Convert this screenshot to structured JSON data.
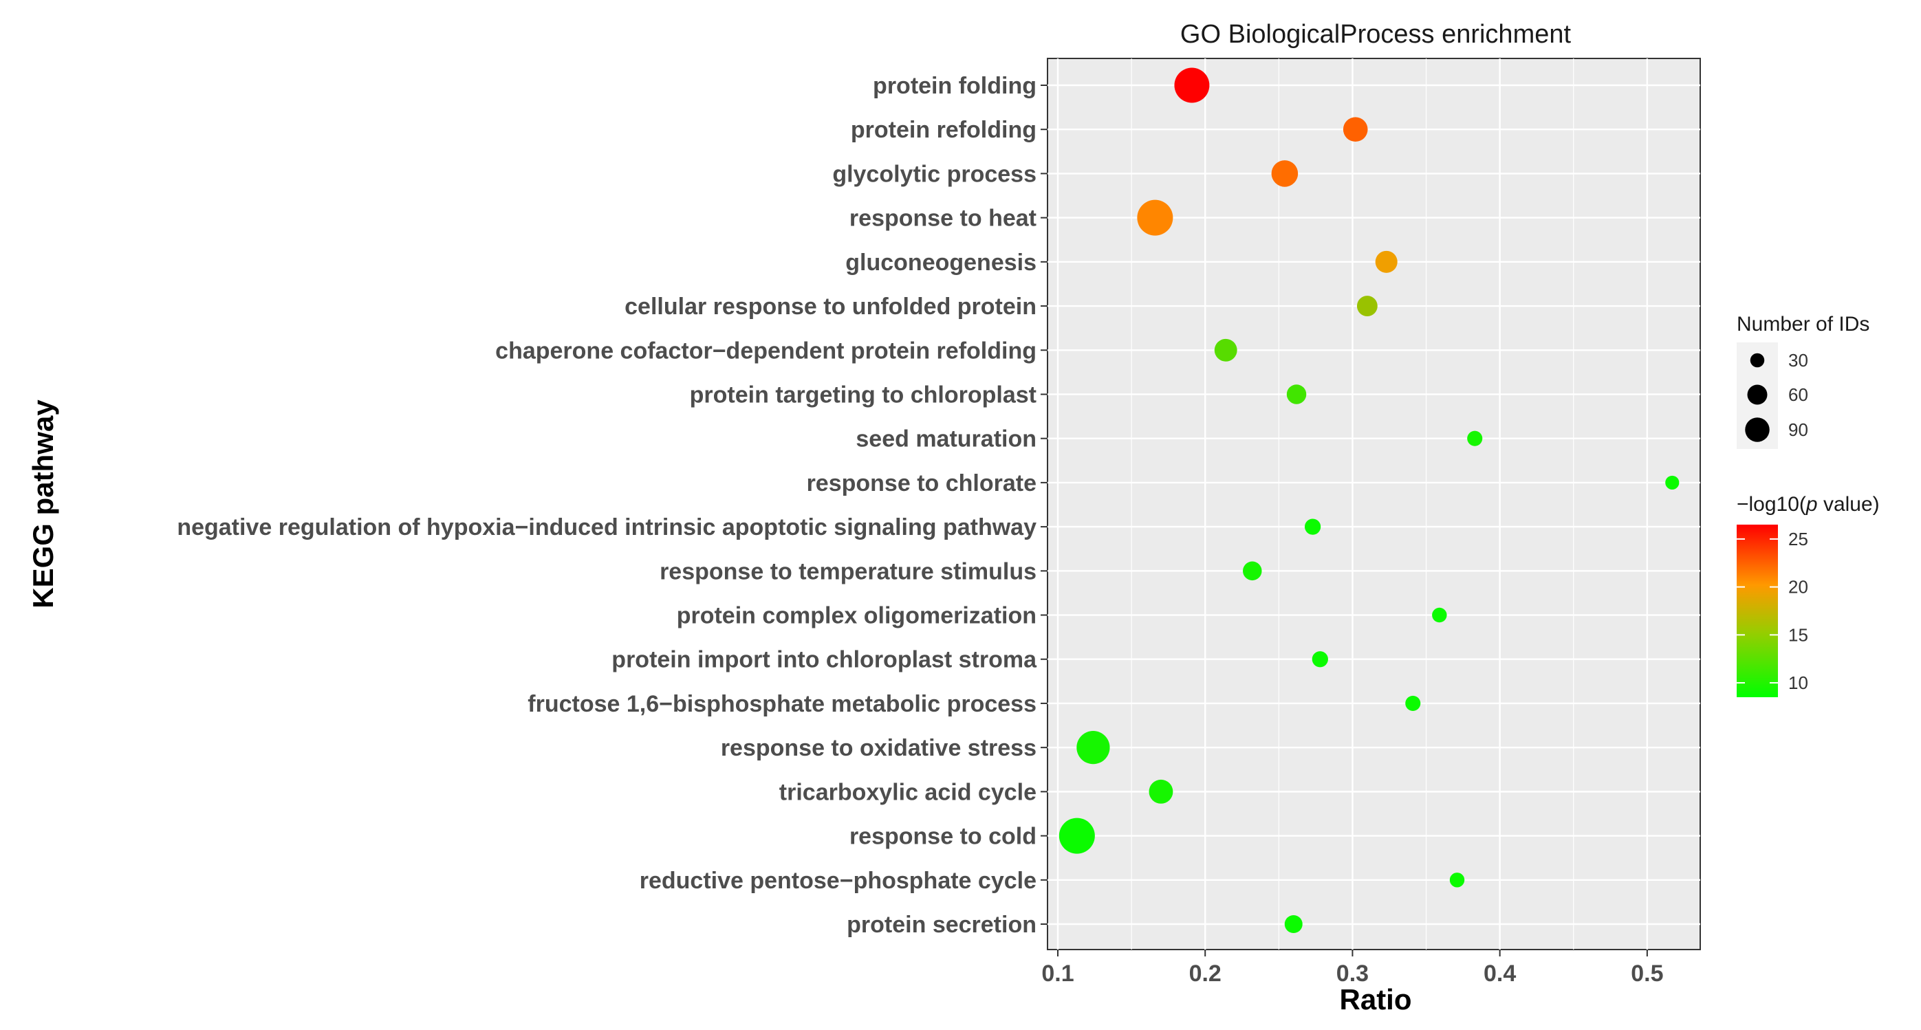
{
  "chart_data": {
    "type": "scatter",
    "title": "GO BiologicalProcess enrichment",
    "xlabel": "Ratio",
    "ylabel": "KEGG pathway",
    "xlim": [
      0.093,
      0.536
    ],
    "xticks": [
      0.1,
      0.2,
      0.3,
      0.4,
      0.5
    ],
    "xtick_labels": [
      "0.1",
      "0.2",
      "0.3",
      "0.4",
      "0.5"
    ],
    "grid": true,
    "background": "#ebebeb",
    "points": [
      {
        "term": "protein folding",
        "ratio": 0.191,
        "count": 96,
        "neglog10p": 26.5
      },
      {
        "term": "protein refolding",
        "ratio": 0.302,
        "count": 47,
        "neglog10p": 22.5
      },
      {
        "term": "glycolytic process",
        "ratio": 0.254,
        "count": 55,
        "neglog10p": 22.0
      },
      {
        "term": "response to heat",
        "ratio": 0.166,
        "count": 100,
        "neglog10p": 21.0
      },
      {
        "term": "gluconeogenesis",
        "ratio": 0.323,
        "count": 38,
        "neglog10p": 19.5
      },
      {
        "term": "cellular response to unfolded protein",
        "ratio": 0.31,
        "count": 33,
        "neglog10p": 15.5
      },
      {
        "term": "chaperone cofactor−dependent protein refolding",
        "ratio": 0.214,
        "count": 40,
        "neglog10p": 12.5
      },
      {
        "term": "protein targeting to chloroplast",
        "ratio": 0.262,
        "count": 30,
        "neglog10p": 11.5
      },
      {
        "term": "seed maturation",
        "ratio": 0.383,
        "count": 18,
        "neglog10p": 9.5
      },
      {
        "term": "response to chlorate",
        "ratio": 0.517,
        "count": 15,
        "neglog10p": 9.0
      },
      {
        "term": "negative regulation of hypoxia−induced intrinsic apoptotic signaling pathway",
        "ratio": 0.273,
        "count": 20,
        "neglog10p": 9.0
      },
      {
        "term": "response to temperature stimulus",
        "ratio": 0.232,
        "count": 28,
        "neglog10p": 9.5
      },
      {
        "term": "protein complex oligomerization",
        "ratio": 0.359,
        "count": 17,
        "neglog10p": 9.0
      },
      {
        "term": "protein import into chloroplast stroma",
        "ratio": 0.278,
        "count": 20,
        "neglog10p": 9.0
      },
      {
        "term": "fructose 1,6−bisphosphate metabolic process",
        "ratio": 0.341,
        "count": 18,
        "neglog10p": 9.0
      },
      {
        "term": "response to oxidative stress",
        "ratio": 0.124,
        "count": 86,
        "neglog10p": 9.5
      },
      {
        "term": "tricarboxylic acid cycle",
        "ratio": 0.17,
        "count": 45,
        "neglog10p": 9.5
      },
      {
        "term": "response to cold",
        "ratio": 0.113,
        "count": 100,
        "neglog10p": 9.0
      },
      {
        "term": "reductive pentose−phosphate cycle",
        "ratio": 0.371,
        "count": 17,
        "neglog10p": 9.0
      },
      {
        "term": "protein secretion",
        "ratio": 0.26,
        "count": 25,
        "neglog10p": 9.0
      }
    ],
    "size_legend": {
      "title": "Number of IDs",
      "values": [
        30,
        60,
        90
      ],
      "labels": [
        "30",
        "60",
        "90"
      ]
    },
    "color_legend": {
      "title_prefix": "−log10(",
      "title_italic": "p",
      "title_suffix": " value)",
      "ticks": [
        10,
        15,
        20,
        25
      ],
      "tick_labels": [
        "10",
        "15",
        "20",
        "25"
      ],
      "range": [
        8.5,
        26.5
      ],
      "low_color": "#00ff00",
      "mid_color": "#ff9900",
      "high_color": "#ff0000"
    }
  }
}
